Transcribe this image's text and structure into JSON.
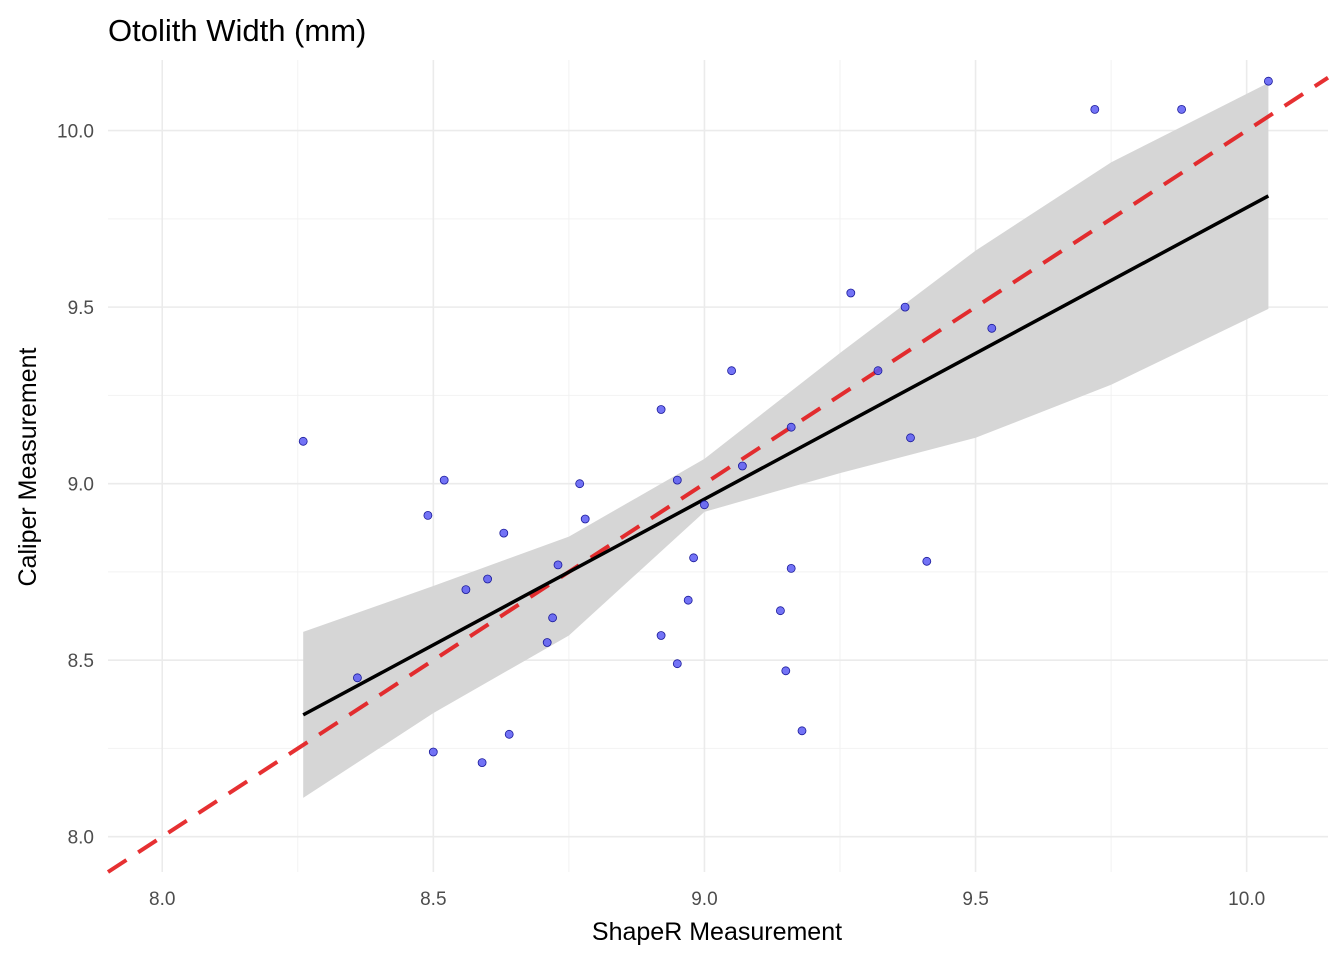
{
  "chart_data": {
    "type": "scatter",
    "title": "Otolith Width (mm)",
    "xlabel": "ShapeR Measurement",
    "ylabel": "Caliper Measurement",
    "xlim": [
      7.9,
      10.15
    ],
    "ylim": [
      7.9,
      10.2
    ],
    "x_ticks": [
      "8.0",
      "8.5",
      "9.0",
      "9.5",
      "10.0"
    ],
    "y_ticks": [
      "8.0",
      "8.5",
      "9.0",
      "9.5",
      "10.0"
    ],
    "grid": true,
    "points": [
      [
        8.26,
        9.12
      ],
      [
        8.36,
        8.45
      ],
      [
        8.49,
        8.91
      ],
      [
        8.5,
        8.24
      ],
      [
        8.52,
        9.01
      ],
      [
        8.56,
        8.7
      ],
      [
        8.59,
        8.21
      ],
      [
        8.6,
        8.73
      ],
      [
        8.63,
        8.86
      ],
      [
        8.64,
        8.29
      ],
      [
        8.71,
        8.55
      ],
      [
        8.72,
        8.62
      ],
      [
        8.73,
        8.77
      ],
      [
        8.77,
        9.0
      ],
      [
        8.78,
        8.9
      ],
      [
        8.92,
        9.21
      ],
      [
        8.92,
        8.57
      ],
      [
        8.95,
        8.49
      ],
      [
        8.95,
        9.01
      ],
      [
        8.97,
        8.67
      ],
      [
        8.98,
        8.79
      ],
      [
        9.0,
        8.94
      ],
      [
        9.05,
        9.32
      ],
      [
        9.07,
        9.05
      ],
      [
        9.14,
        8.64
      ],
      [
        9.15,
        8.47
      ],
      [
        9.16,
        9.16
      ],
      [
        9.16,
        8.76
      ],
      [
        9.18,
        8.3
      ],
      [
        9.27,
        9.54
      ],
      [
        9.32,
        9.32
      ],
      [
        9.37,
        9.5
      ],
      [
        9.38,
        9.13
      ],
      [
        9.41,
        8.78
      ],
      [
        9.53,
        9.44
      ],
      [
        9.72,
        10.06
      ],
      [
        9.88,
        10.06
      ],
      [
        10.04,
        10.14
      ]
    ],
    "point_color": "#5b5bf5",
    "regression": {
      "x": [
        8.26,
        10.04
      ],
      "y": [
        8.345,
        9.815
      ],
      "color": "#000000"
    },
    "confidence_band": {
      "x": [
        8.26,
        8.5,
        8.75,
        9.0,
        9.25,
        9.5,
        9.75,
        10.04
      ],
      "lower": [
        8.11,
        8.35,
        8.57,
        8.92,
        9.03,
        9.13,
        9.28,
        9.495
      ],
      "upper": [
        8.58,
        8.71,
        8.85,
        9.07,
        9.37,
        9.66,
        9.91,
        10.135
      ],
      "color": "#d6d6d6"
    },
    "identity_line": {
      "x": [
        7.9,
        10.15
      ],
      "y": [
        7.9,
        10.15
      ],
      "color": "#e31a1c",
      "style": "dashed"
    }
  }
}
